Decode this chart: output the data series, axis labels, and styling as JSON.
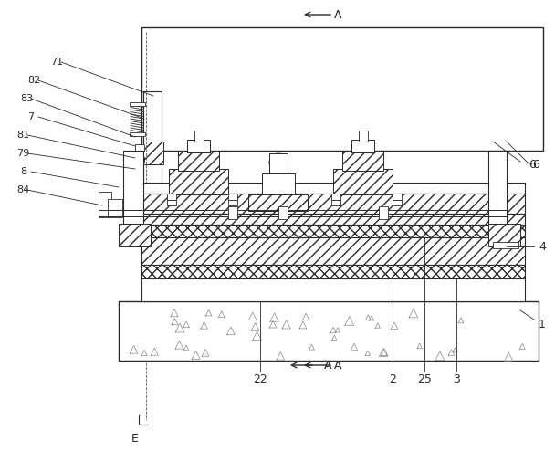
{
  "figure_width": 6.08,
  "figure_height": 4.94,
  "dpi": 100,
  "bg_color": "#ffffff",
  "line_color": "#2a2a2a",
  "labels": {
    "num_71": "71",
    "num_82": "82",
    "num_83": "83",
    "num_7": "7",
    "num_81": "81",
    "num_79": "79",
    "num_8": "8",
    "num_84": "84",
    "num_6": "6",
    "num_4": "4",
    "num_1": "1",
    "num_E": "E",
    "num_22": "22",
    "num_2": "2",
    "num_25": "25",
    "num_3": "3"
  },
  "font_size": 9,
  "font_size_label": 8
}
